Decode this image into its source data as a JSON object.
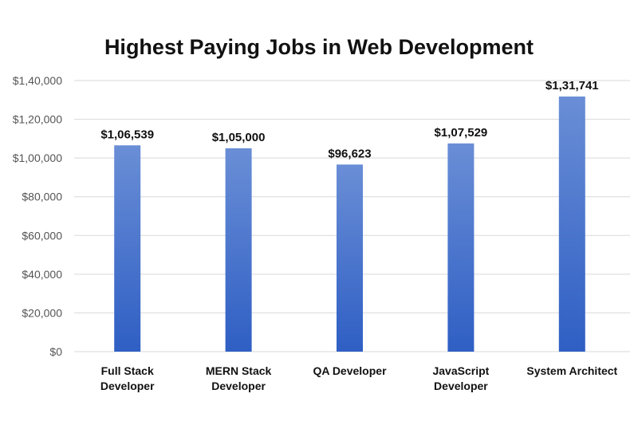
{
  "chart_data": {
    "type": "bar",
    "title": "Highest Paying Jobs in Web Development",
    "xlabel": "",
    "ylabel": "",
    "categories": [
      [
        "Full Stack",
        "Developer"
      ],
      [
        "MERN Stack",
        "Developer"
      ],
      [
        "QA Developer"
      ],
      [
        "JavaScript",
        "Developer"
      ],
      [
        "System Architect"
      ]
    ],
    "values": [
      106539,
      105000,
      96623,
      107529,
      131741
    ],
    "data_labels": [
      "$1,06,539",
      "$1,05,000",
      "$96,623",
      "$1,07,529",
      "$1,31,741"
    ],
    "ylim": [
      0,
      140000
    ],
    "y_ticks": [
      {
        "value": 0,
        "label": "$0"
      },
      {
        "value": 20000,
        "label": "$20,000"
      },
      {
        "value": 40000,
        "label": "$40,000"
      },
      {
        "value": 60000,
        "label": "$60,000"
      },
      {
        "value": 80000,
        "label": "$80,000"
      },
      {
        "value": 100000,
        "label": "$1,00,000"
      },
      {
        "value": 120000,
        "label": "$1,20,000"
      },
      {
        "value": 140000,
        "label": "$1,40,000"
      }
    ],
    "grid": true,
    "legend": "none",
    "colors": {
      "bar_top": "#6a8ed6",
      "bar_bottom": "#2f5fc4",
      "grid": "#d9d9d9"
    }
  }
}
